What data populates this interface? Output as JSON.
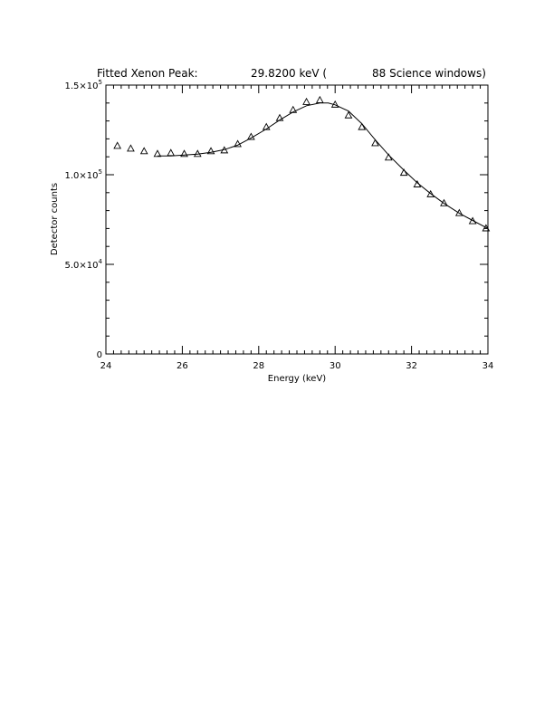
{
  "title_parts": {
    "prefix": "Fitted Xenon Peak:",
    "energy": "29.8200 keV (",
    "windows": "88 Science windows)"
  },
  "chart_data": {
    "type": "scatter",
    "title": "Fitted Xenon Peak:        29.8200 keV (       88 Science windows)",
    "xlabel": "Energy (keV)",
    "ylabel": "Detector counts",
    "xlim": [
      24,
      34
    ],
    "ylim": [
      0,
      150000
    ],
    "x_ticks": [
      24,
      26,
      28,
      30,
      32,
      34
    ],
    "x_tick_labels": [
      "24",
      "26",
      "28",
      "30",
      "32",
      "34"
    ],
    "y_ticks": [
      0,
      50000,
      100000,
      150000
    ],
    "y_tick_labels": [
      {
        "mantissa": "0",
        "exp": ""
      },
      {
        "mantissa": "5.0×10",
        "exp": "4"
      },
      {
        "mantissa": "1.0×10",
        "exp": "5"
      },
      {
        "mantissa": "1.5×10",
        "exp": "5"
      }
    ],
    "grid": false,
    "series": [
      {
        "marker": "triangle",
        "x": [
          24.3,
          24.65,
          25.0,
          25.35,
          25.7,
          26.05,
          26.4,
          26.75,
          27.1,
          27.45,
          27.8,
          28.2,
          28.55,
          28.9,
          29.25,
          29.6,
          30.0,
          30.35,
          30.7,
          31.05,
          31.4,
          31.8,
          32.15,
          32.5,
          32.85,
          33.25,
          33.6,
          33.95
        ],
        "y": [
          116000,
          114500,
          113000,
          111500,
          112000,
          111500,
          111500,
          113000,
          113500,
          117000,
          121000,
          126500,
          131500,
          136000,
          140500,
          141500,
          139000,
          133000,
          126500,
          117500,
          109500,
          101000,
          94500,
          89000,
          84000,
          78500,
          74000,
          70000
        ]
      },
      {
        "marker": "line",
        "x": [
          25.35,
          25.7,
          26.05,
          26.4,
          26.75,
          27.1,
          27.45,
          27.8,
          28.2,
          28.55,
          28.9,
          29.25,
          29.6,
          29.82,
          30.0,
          30.35,
          30.7,
          31.05,
          31.4,
          31.8,
          32.15,
          32.5,
          32.85,
          33.25,
          33.6,
          34.0
        ],
        "y": [
          110500,
          110500,
          111000,
          111500,
          112500,
          114000,
          116500,
          120500,
          125500,
          130500,
          135000,
          138500,
          140000,
          140000,
          139000,
          135500,
          128500,
          119500,
          111000,
          102500,
          95500,
          89500,
          84000,
          78500,
          74500,
          70000
        ]
      }
    ]
  }
}
